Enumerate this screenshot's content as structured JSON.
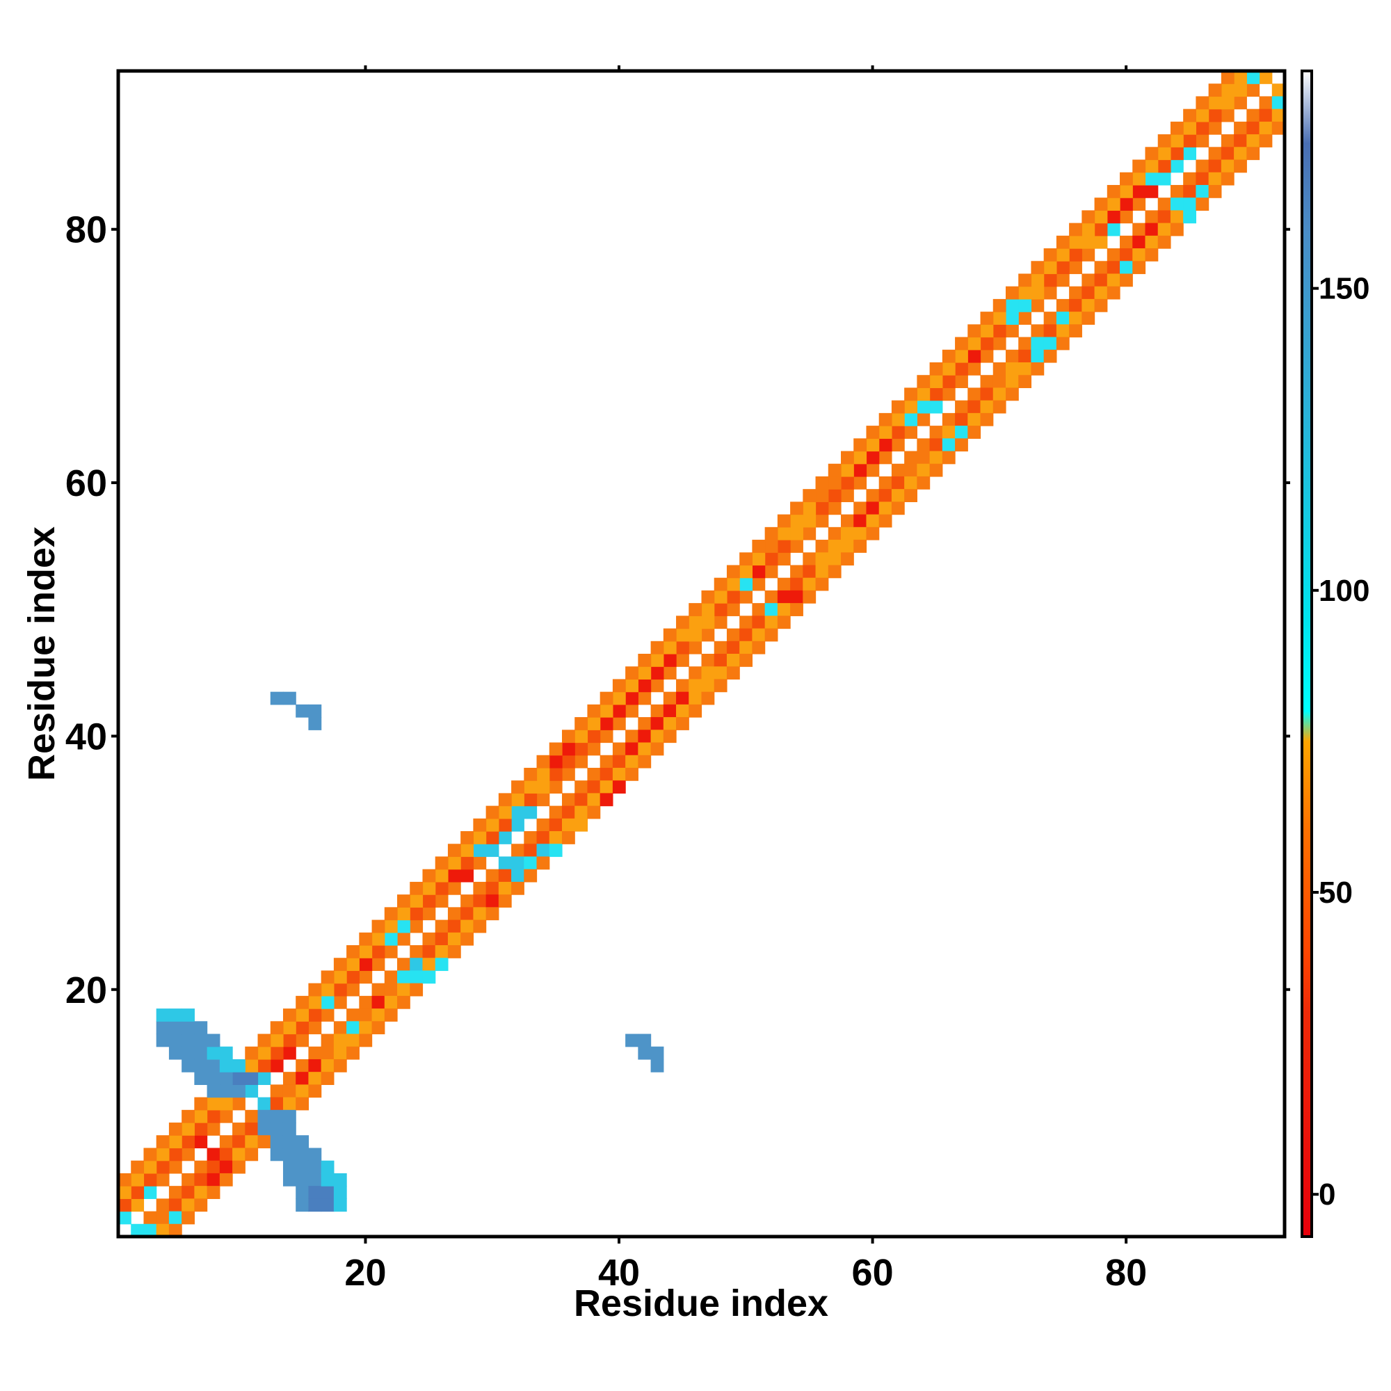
{
  "chart_data": {
    "type": "heatmap",
    "title": "",
    "xlabel": "Residue index",
    "ylabel": "Residue index",
    "n_residues": 92,
    "xlim": [
      0.5,
      92.5
    ],
    "ylim": [
      0.5,
      92.5
    ],
    "x_ticks": [
      20,
      40,
      60,
      80
    ],
    "y_ticks": [
      20,
      40,
      60,
      80
    ],
    "grid": false,
    "legend": "colorbar-right",
    "colorbar": {
      "range": [
        -7,
        186
      ],
      "ticks": [
        0,
        50,
        100,
        150
      ],
      "stops": [
        {
          "value": -7,
          "color": "#e8000b"
        },
        {
          "value": 30,
          "color": "#ee2a08"
        },
        {
          "value": 40,
          "color": "#ff4500"
        },
        {
          "value": 60,
          "color": "#ff7000"
        },
        {
          "value": 75,
          "color": "#ffa500"
        },
        {
          "value": 80,
          "color": "#00ffff"
        },
        {
          "value": 95,
          "color": "#00e5ee"
        },
        {
          "value": 130,
          "color": "#2ab2d9"
        },
        {
          "value": 160,
          "color": "#4a8cc7"
        },
        {
          "value": 174,
          "color": "#4a6fb3"
        },
        {
          "value": 186,
          "color": "#ffffff"
        }
      ]
    },
    "palette": {
      "red": "#ee1a0a",
      "redorange": "#f4500a",
      "orange": "#f7790f",
      "amber": "#fba010",
      "cyan": "#27e3f2",
      "skyblue": "#2ec8e6",
      "steelblue": "#4e94c8",
      "darkblue": "#4a7fbf"
    },
    "helix_diagonals": [
      {
        "offset": 1,
        "color": "orange"
      },
      {
        "offset": 2,
        "color": "redorange"
      },
      {
        "offset": 3,
        "color": "amber"
      },
      {
        "offset": 4,
        "color": "orange"
      }
    ],
    "sheet_contacts": [
      {
        "x": 1,
        "y": 2,
        "color": "cyan"
      },
      {
        "x": 2,
        "y": 1,
        "color": "cyan"
      },
      {
        "x": 3,
        "y": 1,
        "color": "cyan"
      },
      {
        "x": 2,
        "y": 3,
        "color": "amber"
      },
      {
        "x": 3,
        "y": 4,
        "color": "cyan"
      },
      {
        "x": 4,
        "y": 2,
        "color": "orange"
      },
      {
        "x": 5,
        "y": 2,
        "color": "cyan"
      },
      {
        "x": 4,
        "y": 5,
        "color": "orange"
      },
      {
        "x": 7,
        "y": 8,
        "color": "red"
      },
      {
        "x": 8,
        "y": 7,
        "color": "red"
      },
      {
        "x": 8,
        "y": 5,
        "color": "red"
      },
      {
        "x": 9,
        "y": 6,
        "color": "red"
      },
      {
        "x": 10,
        "y": 7,
        "color": "amber"
      },
      {
        "x": 9,
        "y": 11,
        "color": "amber"
      },
      {
        "x": 10,
        "y": 12,
        "color": "skyblue"
      },
      {
        "x": 11,
        "y": 12,
        "color": "skyblue"
      },
      {
        "x": 12,
        "y": 11,
        "color": "skyblue"
      },
      {
        "x": 12,
        "y": 10,
        "color": "skyblue"
      },
      {
        "x": 13,
        "y": 10,
        "color": "skyblue"
      },
      {
        "x": 12,
        "y": 13,
        "color": "skyblue"
      },
      {
        "x": 14,
        "y": 12,
        "color": "orange"
      },
      {
        "x": 13,
        "y": 14,
        "color": "red"
      },
      {
        "x": 14,
        "y": 15,
        "color": "red"
      },
      {
        "x": 15,
        "y": 13,
        "color": "red"
      },
      {
        "x": 16,
        "y": 14,
        "color": "red"
      },
      {
        "x": 17,
        "y": 15,
        "color": "orange"
      },
      {
        "x": 18,
        "y": 16,
        "color": "amber"
      },
      {
        "x": 17,
        "y": 19,
        "color": "cyan"
      },
      {
        "x": 19,
        "y": 17,
        "color": "cyan"
      },
      {
        "x": 20,
        "y": 18,
        "color": "orange"
      },
      {
        "x": 21,
        "y": 19,
        "color": "red"
      },
      {
        "x": 20,
        "y": 22,
        "color": "red"
      },
      {
        "x": 22,
        "y": 20,
        "color": "orange"
      },
      {
        "x": 23,
        "y": 21,
        "color": "cyan"
      },
      {
        "x": 23,
        "y": 25,
        "color": "cyan"
      },
      {
        "x": 22,
        "y": 24,
        "color": "cyan"
      },
      {
        "x": 24,
        "y": 22,
        "color": "skyblue"
      },
      {
        "x": 24,
        "y": 21,
        "color": "cyan"
      },
      {
        "x": 25,
        "y": 21,
        "color": "cyan"
      },
      {
        "x": 26,
        "y": 22,
        "color": "cyan"
      },
      {
        "x": 27,
        "y": 24,
        "color": "amber"
      },
      {
        "x": 27,
        "y": 29,
        "color": "red"
      },
      {
        "x": 28,
        "y": 29,
        "color": "red"
      },
      {
        "x": 30,
        "y": 27,
        "color": "red"
      },
      {
        "x": 29,
        "y": 31,
        "color": "skyblue"
      },
      {
        "x": 30,
        "y": 31,
        "color": "skyblue"
      },
      {
        "x": 31,
        "y": 32,
        "color": "skyblue"
      },
      {
        "x": 32,
        "y": 33,
        "color": "skyblue"
      },
      {
        "x": 33,
        "y": 34,
        "color": "skyblue"
      },
      {
        "x": 32,
        "y": 34,
        "color": "skyblue"
      },
      {
        "x": 31,
        "y": 30,
        "color": "skyblue"
      },
      {
        "x": 32,
        "y": 30,
        "color": "skyblue"
      },
      {
        "x": 32,
        "y": 29,
        "color": "skyblue"
      },
      {
        "x": 33,
        "y": 30,
        "color": "cyan"
      },
      {
        "x": 34,
        "y": 31,
        "color": "skyblue"
      },
      {
        "x": 35,
        "y": 31,
        "color": "cyan"
      },
      {
        "x": 34,
        "y": 36,
        "color": "amber"
      },
      {
        "x": 36,
        "y": 33,
        "color": "amber"
      },
      {
        "x": 37,
        "y": 33,
        "color": "amber"
      },
      {
        "x": 35,
        "y": 38,
        "color": "red"
      },
      {
        "x": 36,
        "y": 39,
        "color": "red"
      },
      {
        "x": 39,
        "y": 35,
        "color": "red"
      },
      {
        "x": 40,
        "y": 36,
        "color": "red"
      },
      {
        "x": 39,
        "y": 41,
        "color": "red"
      },
      {
        "x": 40,
        "y": 42,
        "color": "red"
      },
      {
        "x": 41,
        "y": 39,
        "color": "red"
      },
      {
        "x": 42,
        "y": 40,
        "color": "red"
      },
      {
        "x": 41,
        "y": 43,
        "color": "red"
      },
      {
        "x": 43,
        "y": 41,
        "color": "red"
      },
      {
        "x": 42,
        "y": 44,
        "color": "red"
      },
      {
        "x": 44,
        "y": 42,
        "color": "red"
      },
      {
        "x": 43,
        "y": 45,
        "color": "red"
      },
      {
        "x": 45,
        "y": 43,
        "color": "red"
      },
      {
        "x": 44,
        "y": 46,
        "color": "red"
      },
      {
        "x": 46,
        "y": 44,
        "color": "amber"
      },
      {
        "x": 47,
        "y": 45,
        "color": "amber"
      },
      {
        "x": 46,
        "y": 48,
        "color": "amber"
      },
      {
        "x": 47,
        "y": 49,
        "color": "amber"
      },
      {
        "x": 48,
        "y": 45,
        "color": "amber"
      },
      {
        "x": 49,
        "y": 46,
        "color": "amber"
      },
      {
        "x": 50,
        "y": 52,
        "color": "cyan"
      },
      {
        "x": 52,
        "y": 50,
        "color": "cyan"
      },
      {
        "x": 51,
        "y": 53,
        "color": "red"
      },
      {
        "x": 53,
        "y": 51,
        "color": "red"
      },
      {
        "x": 54,
        "y": 51,
        "color": "red"
      },
      {
        "x": 52,
        "y": 55,
        "color": "orange"
      },
      {
        "x": 54,
        "y": 56,
        "color": "amber"
      },
      {
        "x": 55,
        "y": 57,
        "color": "amber"
      },
      {
        "x": 56,
        "y": 54,
        "color": "amber"
      },
      {
        "x": 57,
        "y": 55,
        "color": "amber"
      },
      {
        "x": 58,
        "y": 56,
        "color": "amber"
      },
      {
        "x": 56,
        "y": 59,
        "color": "orange"
      },
      {
        "x": 57,
        "y": 60,
        "color": "orange"
      },
      {
        "x": 59,
        "y": 57,
        "color": "red"
      },
      {
        "x": 60,
        "y": 58,
        "color": "red"
      },
      {
        "x": 59,
        "y": 61,
        "color": "red"
      },
      {
        "x": 60,
        "y": 62,
        "color": "red"
      },
      {
        "x": 61,
        "y": 63,
        "color": "red"
      },
      {
        "x": 63,
        "y": 61,
        "color": "orange"
      },
      {
        "x": 64,
        "y": 62,
        "color": "orange"
      },
      {
        "x": 63,
        "y": 65,
        "color": "cyan"
      },
      {
        "x": 64,
        "y": 66,
        "color": "cyan"
      },
      {
        "x": 65,
        "y": 66,
        "color": "cyan"
      },
      {
        "x": 66,
        "y": 63,
        "color": "cyan"
      },
      {
        "x": 67,
        "y": 64,
        "color": "cyan"
      },
      {
        "x": 66,
        "y": 64,
        "color": "amber"
      },
      {
        "x": 68,
        "y": 70,
        "color": "red"
      },
      {
        "x": 70,
        "y": 68,
        "color": "orange"
      },
      {
        "x": 71,
        "y": 69,
        "color": "amber"
      },
      {
        "x": 71,
        "y": 73,
        "color": "cyan"
      },
      {
        "x": 72,
        "y": 74,
        "color": "cyan"
      },
      {
        "x": 71,
        "y": 74,
        "color": "cyan"
      },
      {
        "x": 73,
        "y": 71,
        "color": "cyan"
      },
      {
        "x": 73,
        "y": 70,
        "color": "cyan"
      },
      {
        "x": 74,
        "y": 71,
        "color": "cyan"
      },
      {
        "x": 73,
        "y": 75,
        "color": "amber"
      },
      {
        "x": 75,
        "y": 73,
        "color": "cyan"
      },
      {
        "x": 76,
        "y": 73,
        "color": "amber"
      },
      {
        "x": 77,
        "y": 79,
        "color": "amber"
      },
      {
        "x": 78,
        "y": 79,
        "color": "amber"
      },
      {
        "x": 79,
        "y": 80,
        "color": "cyan"
      },
      {
        "x": 80,
        "y": 77,
        "color": "cyan"
      },
      {
        "x": 79,
        "y": 81,
        "color": "red"
      },
      {
        "x": 81,
        "y": 79,
        "color": "red"
      },
      {
        "x": 80,
        "y": 82,
        "color": "red"
      },
      {
        "x": 82,
        "y": 80,
        "color": "red"
      },
      {
        "x": 81,
        "y": 83,
        "color": "red"
      },
      {
        "x": 82,
        "y": 83,
        "color": "red"
      },
      {
        "x": 82,
        "y": 84,
        "color": "cyan"
      },
      {
        "x": 83,
        "y": 84,
        "color": "cyan"
      },
      {
        "x": 84,
        "y": 85,
        "color": "cyan"
      },
      {
        "x": 85,
        "y": 86,
        "color": "cyan"
      },
      {
        "x": 84,
        "y": 82,
        "color": "cyan"
      },
      {
        "x": 85,
        "y": 81,
        "color": "cyan"
      },
      {
        "x": 85,
        "y": 82,
        "color": "cyan"
      },
      {
        "x": 86,
        "y": 83,
        "color": "cyan"
      },
      {
        "x": 88,
        "y": 90,
        "color": "amber"
      },
      {
        "x": 89,
        "y": 91,
        "color": "amber"
      },
      {
        "x": 90,
        "y": 92,
        "color": "cyan"
      },
      {
        "x": 92,
        "y": 90,
        "color": "cyan"
      },
      {
        "x": 92,
        "y": 91,
        "color": "amber"
      },
      {
        "x": 91,
        "y": 92,
        "color": "amber"
      }
    ],
    "blue_patches": [
      {
        "x": [
          4,
          6
        ],
        "y": [
          16,
          18
        ],
        "color": "steelblue"
      },
      {
        "x": [
          5,
          7
        ],
        "y": [
          15,
          17
        ],
        "color": "steelblue"
      },
      {
        "x": [
          6,
          8
        ],
        "y": [
          14,
          16
        ],
        "color": "steelblue"
      },
      {
        "x": [
          7,
          9
        ],
        "y": [
          13,
          15
        ],
        "color": "steelblue"
      },
      {
        "x": [
          8,
          10
        ],
        "y": [
          12,
          14
        ],
        "color": "steelblue"
      },
      {
        "x": [
          4,
          6
        ],
        "y": [
          18,
          18
        ],
        "color": "skyblue"
      },
      {
        "x": [
          8,
          9
        ],
        "y": [
          15,
          15
        ],
        "color": "skyblue"
      },
      {
        "x": [
          9,
          10
        ],
        "y": [
          14,
          14
        ],
        "color": "skyblue"
      },
      {
        "x": [
          10,
          11
        ],
        "y": [
          13,
          13
        ],
        "color": "darkblue"
      },
      {
        "x": [
          12,
          14
        ],
        "y": [
          9,
          10
        ],
        "color": "steelblue"
      },
      {
        "x": [
          13,
          15
        ],
        "y": [
          7,
          8
        ],
        "color": "steelblue"
      },
      {
        "x": [
          14,
          16
        ],
        "y": [
          5,
          7
        ],
        "color": "steelblue"
      },
      {
        "x": [
          15,
          17
        ],
        "y": [
          3,
          5
        ],
        "color": "steelblue"
      },
      {
        "x": [
          16,
          17
        ],
        "y": [
          3,
          4
        ],
        "color": "darkblue"
      },
      {
        "x": [
          18,
          18
        ],
        "y": [
          3,
          5
        ],
        "color": "skyblue"
      },
      {
        "x": [
          17,
          17
        ],
        "y": [
          5,
          6
        ],
        "color": "skyblue"
      },
      {
        "x": [
          13,
          14
        ],
        "y": [
          43,
          43
        ],
        "color": "steelblue"
      },
      {
        "x": [
          15,
          16
        ],
        "y": [
          42,
          42
        ],
        "color": "steelblue"
      },
      {
        "x": [
          16,
          16
        ],
        "y": [
          41,
          41
        ],
        "color": "steelblue"
      },
      {
        "x": [
          41,
          42
        ],
        "y": [
          16,
          16
        ],
        "color": "steelblue"
      },
      {
        "x": [
          42,
          43
        ],
        "y": [
          15,
          15
        ],
        "color": "steelblue"
      },
      {
        "x": [
          43,
          43
        ],
        "y": [
          14,
          14
        ],
        "color": "steelblue"
      }
    ]
  }
}
